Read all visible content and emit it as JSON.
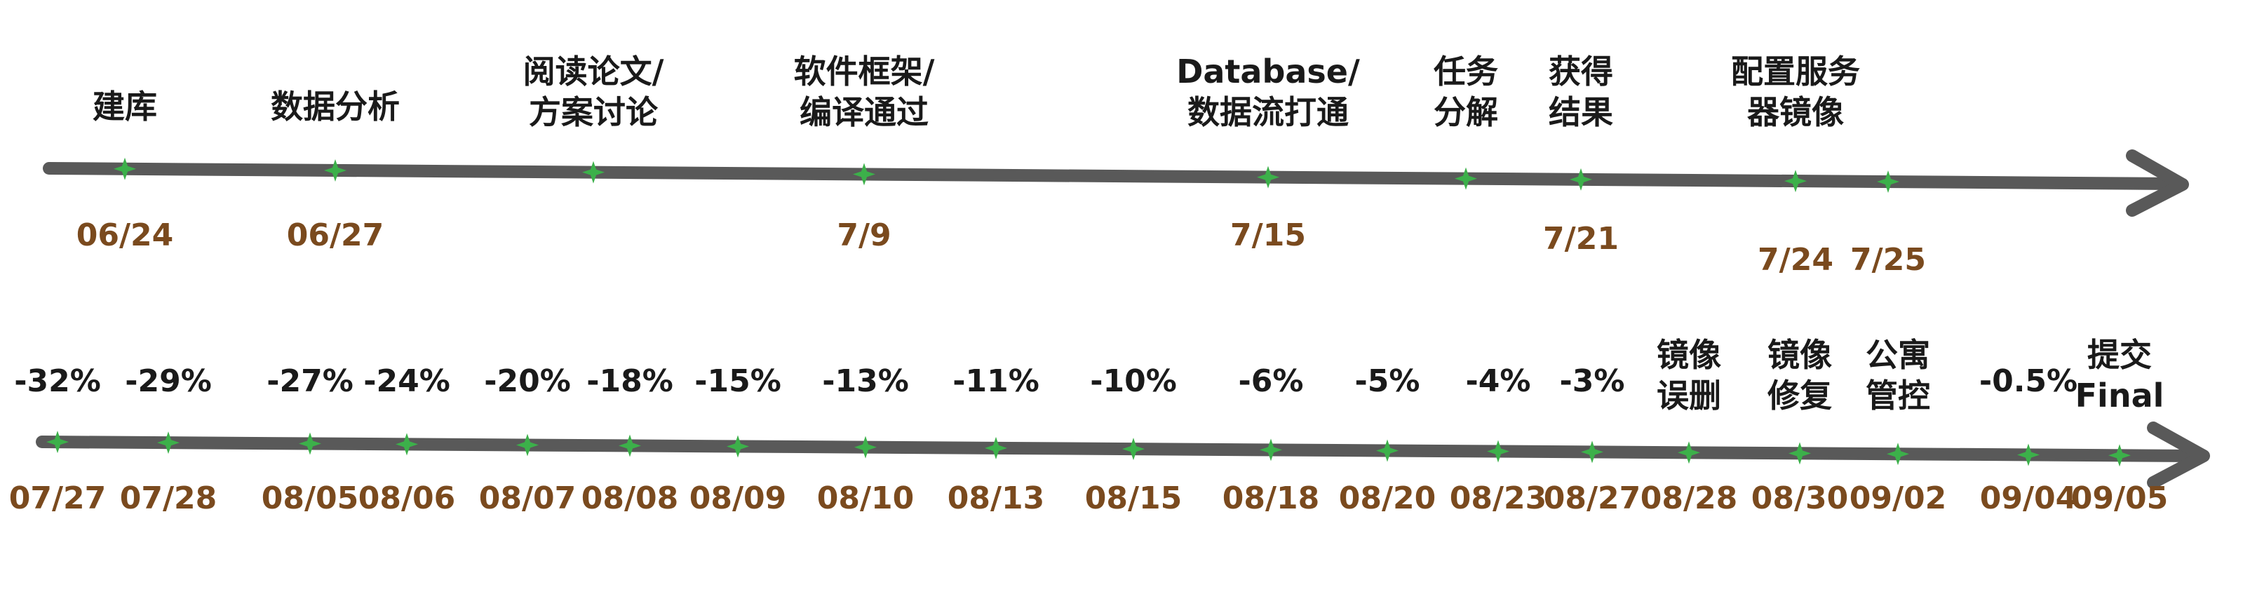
{
  "colors": {
    "axis": "#595959",
    "tick": "#3cb04a",
    "date_text": "#7a4a1e",
    "event_text": "#1a1a1a"
  },
  "timeline_top": {
    "events": [
      {
        "label": [
          "建库"
        ],
        "date": "06/24"
      },
      {
        "label": [
          "数据分析"
        ],
        "date": "06/27"
      },
      {
        "label": [
          "阅读论文/",
          "方案讨论"
        ],
        "date": ""
      },
      {
        "label": [
          "软件框架/",
          "编译通过"
        ],
        "date": "7/9"
      },
      {
        "label": [
          "Database/",
          "数据流打通"
        ],
        "date": "7/15"
      },
      {
        "label": [
          "任务",
          "分解"
        ],
        "date": ""
      },
      {
        "label": [
          "获得",
          "结果"
        ],
        "date": "7/21"
      },
      {
        "label": [
          "配置服务",
          "器镜像"
        ],
        "date": "7/24"
      },
      {
        "label": [],
        "date": "7/25"
      }
    ]
  },
  "timeline_bottom": {
    "events": [
      {
        "label": [
          "-32%"
        ],
        "date": "07/27"
      },
      {
        "label": [
          "-29%"
        ],
        "date": "07/28"
      },
      {
        "label": [
          "-27%"
        ],
        "date": "08/05"
      },
      {
        "label": [
          "-24%"
        ],
        "date": "08/06"
      },
      {
        "label": [
          "-20%"
        ],
        "date": "08/07"
      },
      {
        "label": [
          "-18%"
        ],
        "date": "08/08"
      },
      {
        "label": [
          "-15%"
        ],
        "date": "08/09"
      },
      {
        "label": [
          "-13%"
        ],
        "date": "08/10"
      },
      {
        "label": [
          "-11%"
        ],
        "date": "08/13"
      },
      {
        "label": [
          "-10%"
        ],
        "date": "08/15"
      },
      {
        "label": [
          "-6%"
        ],
        "date": "08/18"
      },
      {
        "label": [
          "-5%"
        ],
        "date": "08/20"
      },
      {
        "label": [
          "-4%"
        ],
        "date": "08/23"
      },
      {
        "label": [
          "-3%"
        ],
        "date": "08/27"
      },
      {
        "label": [
          "镜像",
          "误删"
        ],
        "date": "08/28"
      },
      {
        "label": [
          "镜像",
          "修复"
        ],
        "date": "08/30"
      },
      {
        "label": [
          "公寓",
          "管控"
        ],
        "date": "09/02"
      },
      {
        "label": [
          "-0.5%"
        ],
        "date": "09/04"
      },
      {
        "label": [
          "提交",
          "Final"
        ],
        "date": "09/05"
      }
    ]
  }
}
